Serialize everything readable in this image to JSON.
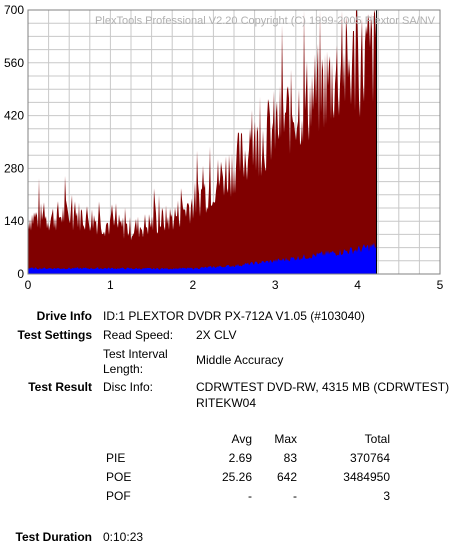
{
  "chart_data": {
    "type": "area",
    "title": "PlexTools Professional V2.20 Copyright (C) 1999-2005 Plextor SA/NV",
    "xlim": [
      0,
      5
    ],
    "ylim": [
      0,
      700
    ],
    "x_ticks": [
      "0",
      "1",
      "2",
      "3",
      "4",
      "5"
    ],
    "y_ticks": [
      "0",
      "140",
      "280",
      "420",
      "560",
      "700"
    ],
    "grid": true,
    "data_end_x": 4.23,
    "series": [
      {
        "color": "#800000",
        "x": [
          0,
          0.25,
          0.5,
          0.75,
          1.0,
          1.25,
          1.5,
          1.75,
          2.0,
          2.25,
          2.5,
          2.75,
          3.0,
          3.25,
          3.5,
          3.75,
          4.0,
          4.23
        ],
        "values": [
          150,
          150,
          160,
          150,
          130,
          120,
          135,
          150,
          190,
          240,
          290,
          340,
          390,
          440,
          480,
          530,
          560,
          590
        ]
      },
      {
        "color": "#0000ff",
        "x": [
          0,
          0.5,
          1.0,
          1.5,
          2.0,
          2.5,
          3.0,
          3.5,
          4.0,
          4.23
        ],
        "values": [
          15,
          15,
          15,
          14,
          15,
          22,
          35,
          50,
          65,
          75
        ]
      }
    ]
  },
  "info": {
    "drive_label": "Drive Info",
    "drive_value": "ID:1 PLEXTOR DVDR PX-712A V1.05 (#103040)",
    "settings_label": "Test Settings",
    "read_speed_label": "Read Speed:",
    "read_speed_value": "2X CLV",
    "interval_label_1": "Test Interval",
    "interval_label_2": "Length:",
    "interval_value": "Middle Accuracy",
    "result_label": "Test Result",
    "disc_info_label": "Disc Info:",
    "disc_info_value_1": "CDRWTEST DVD-RW, 4315 MB (CDRWTEST)",
    "disc_info_value_2": "RITEKW04",
    "duration_label": "Test Duration",
    "duration_value": "0:10:23"
  },
  "stats": {
    "headers": {
      "avg": "Avg",
      "max": "Max",
      "total": "Total"
    },
    "rows": [
      {
        "name": "PIE",
        "avg": "2.69",
        "max": "83",
        "total": "370764"
      },
      {
        "name": "POE",
        "avg": "25.26",
        "max": "642",
        "total": "3484950"
      },
      {
        "name": "POF",
        "avg": "-",
        "max": "-",
        "total": "3"
      }
    ]
  }
}
